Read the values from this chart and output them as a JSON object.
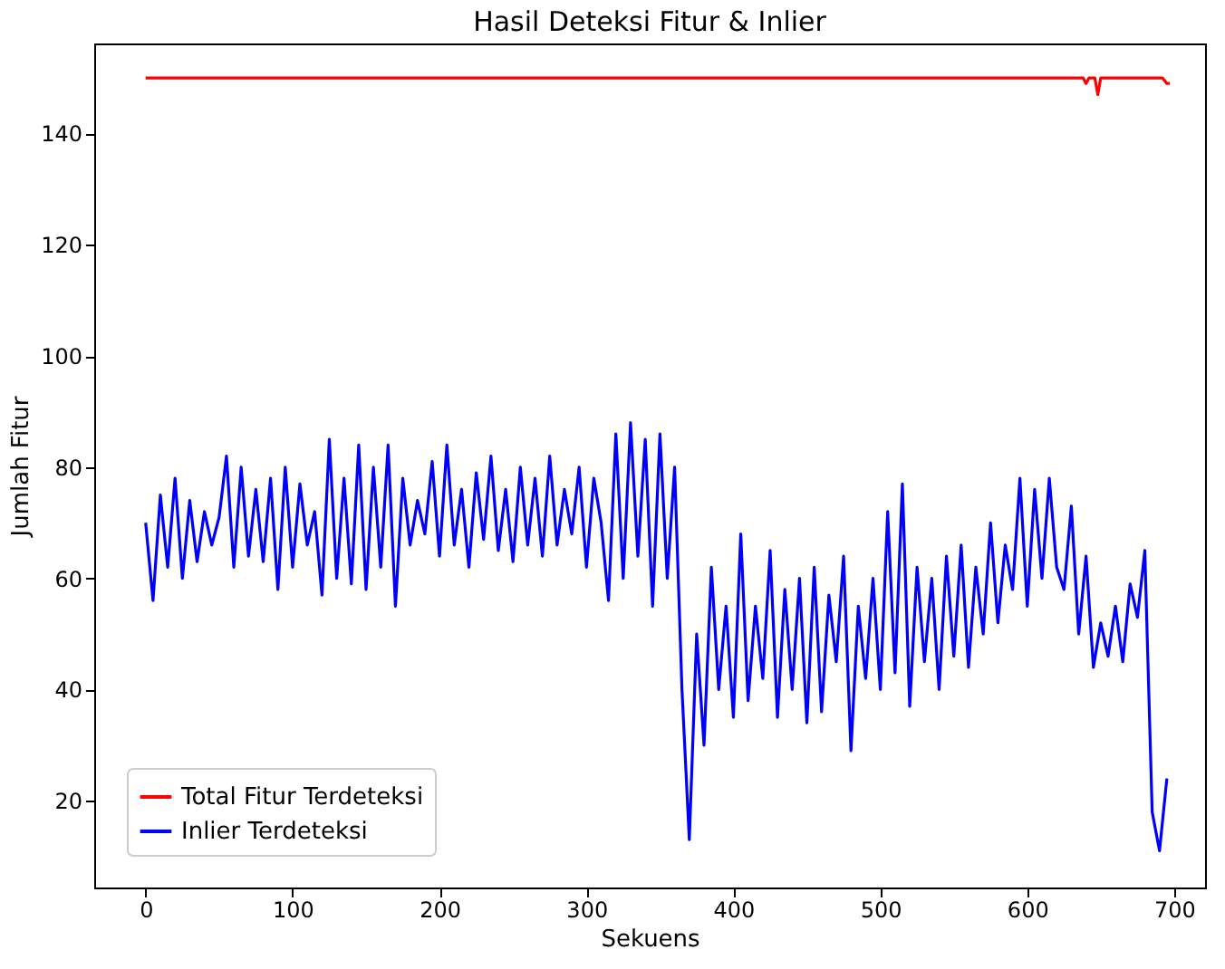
{
  "chart_data": {
    "type": "line",
    "title": "Hasil Deteksi Fitur & Inlier",
    "xlabel": "Sekuens",
    "ylabel": "Jumlah Fitur",
    "xlim": [
      -35,
      721
    ],
    "ylim": [
      4.4,
      156.2
    ],
    "xticks": [
      0,
      100,
      200,
      300,
      400,
      500,
      600,
      700
    ],
    "yticks": [
      20,
      40,
      60,
      80,
      100,
      120,
      140
    ],
    "grid": false,
    "legend": "bottom left",
    "marker": "none",
    "line_style": "solid",
    "series": [
      {
        "name": "Total Fitur Terdeteksi",
        "color": "#ff0000",
        "x": [
          0,
          638,
          640,
          642,
          646,
          648,
          650,
          692,
          695,
          697
        ],
        "values": [
          150,
          150,
          149,
          150,
          150,
          147,
          150,
          150,
          149,
          149
        ]
      },
      {
        "name": "Inlier Terdeteksi",
        "color": "#0000ff",
        "x": [
          0,
          5,
          10,
          15,
          20,
          25,
          30,
          35,
          40,
          45,
          50,
          55,
          60,
          65,
          70,
          75,
          80,
          85,
          90,
          95,
          100,
          105,
          110,
          115,
          120,
          125,
          130,
          135,
          140,
          145,
          150,
          155,
          160,
          165,
          170,
          175,
          180,
          185,
          190,
          195,
          200,
          205,
          210,
          215,
          220,
          225,
          230,
          235,
          240,
          245,
          250,
          255,
          260,
          265,
          270,
          275,
          280,
          285,
          290,
          295,
          300,
          305,
          310,
          315,
          320,
          325,
          330,
          335,
          340,
          345,
          350,
          355,
          360,
          365,
          370,
          375,
          380,
          385,
          390,
          395,
          400,
          405,
          410,
          415,
          420,
          425,
          430,
          435,
          440,
          445,
          450,
          455,
          460,
          465,
          470,
          475,
          480,
          485,
          490,
          495,
          500,
          505,
          510,
          515,
          520,
          525,
          530,
          535,
          540,
          545,
          550,
          555,
          560,
          565,
          570,
          575,
          580,
          585,
          590,
          595,
          600,
          605,
          610,
          615,
          620,
          625,
          630,
          635,
          640,
          645,
          650,
          655,
          660,
          665,
          670,
          675,
          680,
          685,
          690,
          695
        ],
        "values": [
          70,
          56,
          75,
          62,
          78,
          60,
          74,
          63,
          72,
          66,
          71,
          82,
          62,
          80,
          64,
          76,
          63,
          78,
          58,
          80,
          62,
          77,
          66,
          72,
          57,
          85,
          60,
          78,
          59,
          84,
          58,
          80,
          62,
          84,
          55,
          78,
          66,
          74,
          68,
          81,
          64,
          84,
          66,
          76,
          62,
          79,
          67,
          82,
          65,
          76,
          63,
          80,
          66,
          78,
          64,
          82,
          66,
          76,
          68,
          80,
          62,
          78,
          70,
          56,
          86,
          60,
          88,
          64,
          85,
          55,
          86,
          60,
          80,
          40,
          13,
          50,
          30,
          62,
          40,
          55,
          35,
          68,
          38,
          55,
          42,
          65,
          35,
          58,
          40,
          60,
          34,
          62,
          36,
          57,
          45,
          64,
          29,
          55,
          42,
          60,
          40,
          72,
          43,
          77,
          37,
          62,
          45,
          60,
          40,
          64,
          46,
          66,
          44,
          62,
          50,
          70,
          52,
          66,
          58,
          78,
          55,
          76,
          60,
          78,
          62,
          58,
          73,
          50,
          64,
          44,
          52,
          46,
          55,
          45,
          59,
          53,
          65,
          18,
          11,
          24
        ]
      }
    ]
  }
}
